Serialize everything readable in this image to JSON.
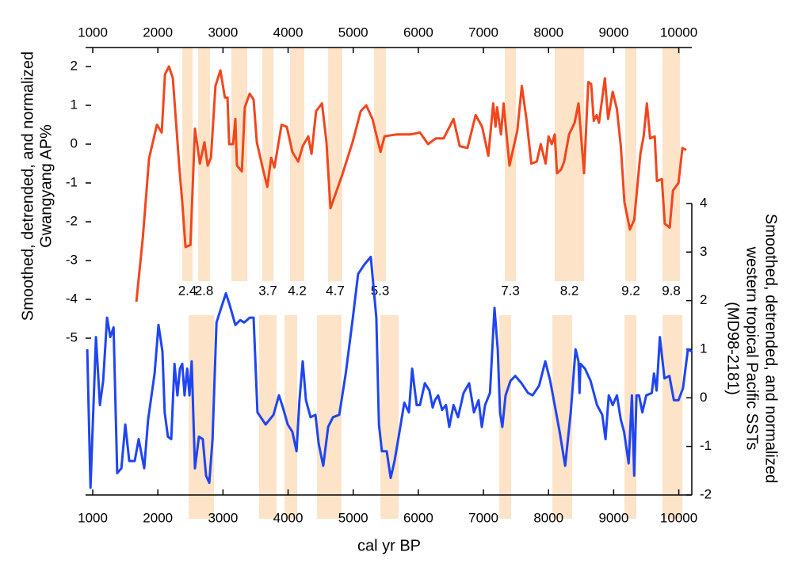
{
  "chart_data": {
    "type": "line",
    "xlabel": "cal yr BP",
    "ylabel": [
      "Smoothed, detrended, and normalized",
      "Gwangyang AP%"
    ],
    "y2label": [
      "Smoothed, detrended, and normalized",
      "western tropical Pacific SSTs",
      "(MD98-2181)"
    ],
    "xlim": [
      890,
      10200
    ],
    "xticks": [
      1000,
      2000,
      3000,
      4000,
      5000,
      6000,
      7000,
      8000,
      9000,
      10000
    ],
    "ylim": [
      -9.04,
      2.49
    ],
    "yticks": [
      -5,
      -4,
      -3,
      -2,
      -1,
      0,
      1,
      2
    ],
    "y2lim": [
      -2,
      7.21
    ],
    "y2ticks": [
      -2,
      -1,
      0,
      1,
      2,
      3,
      4
    ],
    "band_color": "#fde3c8",
    "bands_upper": [
      {
        "start": 2375,
        "end": 2533,
        "label": "2.4"
      },
      {
        "start": 2619,
        "end": 2801,
        "label": "2.8"
      },
      {
        "start": 3130,
        "end": 3373
      },
      {
        "start": 3604,
        "end": 3775,
        "label": "3.7"
      },
      {
        "start": 4030,
        "end": 4249,
        "label": "4.2"
      },
      {
        "start": 4614,
        "end": 4833,
        "label": "4.7"
      },
      {
        "start": 5320,
        "end": 5503,
        "label": "5.3"
      },
      {
        "start": 7328,
        "end": 7499,
        "label": "7.3"
      },
      {
        "start": 8095,
        "end": 8545,
        "label": "8.2"
      },
      {
        "start": 9178,
        "end": 9348,
        "label": "9.2"
      },
      {
        "start": 9750,
        "end": 10018,
        "label": "9.8"
      }
    ],
    "bands_lower": [
      {
        "start": 2473,
        "end": 2862
      },
      {
        "start": 3556,
        "end": 3823
      },
      {
        "start": 3945,
        "end": 4140
      },
      {
        "start": 4444,
        "end": 4821
      },
      {
        "start": 5418,
        "end": 5698
      },
      {
        "start": 7243,
        "end": 7426
      },
      {
        "start": 8059,
        "end": 8363
      },
      {
        "start": 9166,
        "end": 9348
      },
      {
        "start": 9750,
        "end": 10055
      }
    ],
    "series": [
      {
        "color": "#f2461d",
        "x": [
          1670,
          1770,
          1865,
          1985,
          2060,
          2110,
          2170,
          2230,
          2330,
          2375,
          2425,
          2500,
          2570,
          2645,
          2715,
          2765,
          2815,
          2885,
          2960,
          3030,
          3070,
          3095,
          3155,
          3190,
          3215,
          3290,
          3335,
          3410,
          3470,
          3520,
          3615,
          3680,
          3740,
          3790,
          3900,
          3980,
          4065,
          4155,
          4225,
          4310,
          4360,
          4430,
          4520,
          4590,
          4650,
          4725,
          4830,
          4990,
          5115,
          5200,
          5295,
          5420,
          5480,
          5660,
          5880,
          6025,
          6150,
          6270,
          6390,
          6540,
          6635,
          6755,
          6880,
          6980,
          7075,
          7150,
          7185,
          7210,
          7270,
          7310,
          7400,
          7520,
          7590,
          7660,
          7735,
          7820,
          7880,
          7955,
          8000,
          8050,
          8095,
          8130,
          8195,
          8240,
          8315,
          8400,
          8460,
          8545,
          8610,
          8655,
          8695,
          8740,
          8775,
          8865,
          8915,
          8985,
          9050,
          9110,
          9165,
          9250,
          9315,
          9410,
          9460,
          9510,
          9560,
          9630,
          9665,
          9740,
          9785,
          9860,
          9910,
          9995,
          10055,
          10115
        ],
        "values": [
          -4.06,
          -2.4,
          -0.37,
          0.5,
          0.3,
          1.8,
          2.0,
          1.7,
          -0.6,
          -1.5,
          -2.65,
          -2.6,
          0.4,
          -0.5,
          0.05,
          -0.55,
          -0.35,
          1.5,
          1.9,
          1.2,
          1.2,
          0,
          0,
          0.65,
          -0.55,
          -0.7,
          0.95,
          1.3,
          1.15,
          0.05,
          -0.65,
          -1.1,
          -0.35,
          -0.6,
          0.5,
          0.45,
          -0.2,
          -0.45,
          -0.05,
          0.2,
          -0.25,
          0.85,
          1.05,
          0.05,
          -1.65,
          -1.3,
          -0.8,
          0.05,
          0.85,
          1.0,
          0.65,
          -0.2,
          0.2,
          0.25,
          0.25,
          0.3,
          0,
          0.15,
          0.15,
          0.65,
          -0.05,
          -0.1,
          0.75,
          0.45,
          -0.3,
          1.05,
          0.45,
          0.95,
          0.25,
          1.05,
          -0.55,
          0.35,
          1.5,
          0.65,
          -0.5,
          -0.45,
          0,
          -0.5,
          0.2,
          0,
          0.25,
          -0.75,
          -0.65,
          -0.45,
          0.25,
          0.55,
          1.05,
          -0.75,
          1.6,
          1.55,
          0.6,
          0.75,
          0.55,
          1.7,
          0.65,
          1.35,
          0.9,
          -0.05,
          -1.5,
          -2.2,
          -1.95,
          -0.25,
          0.2,
          1.05,
          0.15,
          0.2,
          -0.95,
          -0.9,
          -2.05,
          -2.15,
          -1.2,
          -1.0,
          -0.1,
          -0.15
        ]
      },
      {
        "color": "#1f45f2",
        "axis": "y2",
        "x": [
          915,
          965,
          1050,
          1110,
          1160,
          1220,
          1270,
          1320,
          1375,
          1440,
          1500,
          1560,
          1645,
          1705,
          1790,
          1850,
          1950,
          2010,
          2070,
          2105,
          2155,
          2205,
          2255,
          2300,
          2340,
          2375,
          2410,
          2450,
          2485,
          2520,
          2570,
          2630,
          2690,
          2740,
          2790,
          2840,
          2900,
          2985,
          3045,
          3105,
          3190,
          3265,
          3325,
          3410,
          3470,
          3530,
          3655,
          3775,
          3860,
          3920,
          3995,
          4065,
          4130,
          4175,
          4225,
          4275,
          4345,
          4420,
          4470,
          4540,
          4615,
          4690,
          4785,
          4885,
          4990,
          5075,
          5175,
          5270,
          5355,
          5395,
          5440,
          5515,
          5575,
          5635,
          5710,
          5785,
          5855,
          5905,
          5975,
          6025,
          6100,
          6170,
          6220,
          6255,
          6305,
          6365,
          6425,
          6475,
          6540,
          6610,
          6695,
          6780,
          6855,
          6925,
          6975,
          7025,
          7100,
          7170,
          7220,
          7255,
          7290,
          7340,
          7415,
          7490,
          7585,
          7685,
          7755,
          7855,
          7950,
          8025,
          8095,
          8170,
          8255,
          8340,
          8415,
          8460,
          8475,
          8490,
          8560,
          8645,
          8745,
          8825,
          8875,
          8925,
          8985,
          9050,
          9110,
          9160,
          9230,
          9280,
          9315,
          9350,
          9390,
          9440,
          9500,
          9585,
          9620,
          9660,
          9710,
          9780,
          9855,
          9925,
          9995,
          10065,
          10140,
          10200
        ],
        "values": [
          1.0,
          -1.85,
          1.25,
          -0.15,
          0.35,
          1.65,
          1.25,
          1.45,
          -1.55,
          -1.45,
          -0.55,
          -1.3,
          -1.3,
          -0.85,
          -1.45,
          -0.45,
          0.5,
          1.5,
          0.95,
          -0.3,
          -0.8,
          -0.85,
          0.7,
          0.05,
          0.6,
          0.7,
          0.05,
          0.6,
          0.05,
          0.75,
          -1.45,
          -0.8,
          -0.85,
          -1.6,
          -1.75,
          -0.85,
          1.55,
          1.9,
          2.15,
          1.9,
          1.5,
          1.6,
          1.55,
          1.65,
          1.65,
          -0.3,
          -0.55,
          -0.35,
          0.05,
          -0.2,
          -0.55,
          -0.7,
          -1.1,
          -0.05,
          0.75,
          -0.05,
          -0.4,
          -0.35,
          -0.95,
          -1.4,
          -0.6,
          -0.4,
          -0.35,
          0.5,
          1.6,
          2.55,
          2.75,
          2.9,
          1.65,
          -0.55,
          -1.1,
          -1.1,
          -1.65,
          -1.3,
          -0.7,
          -0.1,
          -0.3,
          0.6,
          -0.15,
          -0.15,
          0.3,
          0.15,
          -0.2,
          -0.05,
          0.05,
          -0.25,
          -0.15,
          -0.6,
          -0.15,
          -0.4,
          0.1,
          0.3,
          -0.3,
          -0.05,
          -0.6,
          -0.15,
          0.1,
          1.85,
          1.0,
          -0.3,
          -0.6,
          0.05,
          0.35,
          0.45,
          0.3,
          0.1,
          0.05,
          0.25,
          0.75,
          0.35,
          -0.15,
          -0.7,
          -1.4,
          -0.3,
          1.0,
          0.75,
          0.1,
          0.7,
          0.6,
          0.35,
          -0.15,
          -0.35,
          -0.85,
          0.05,
          -0.15,
          0.05,
          -0.45,
          -0.7,
          -1.35,
          0.05,
          -1.6,
          0.05,
          0.05,
          -0.3,
          0.05,
          0.1,
          0.5,
          0.15,
          1.25,
          0.4,
          0.45,
          -0.05,
          -0.05,
          0.2,
          1.0,
          0.95
        ]
      }
    ]
  }
}
